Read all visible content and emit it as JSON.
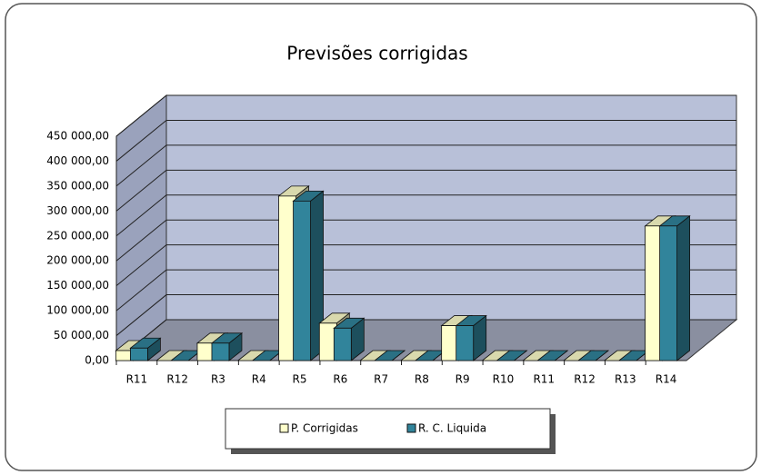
{
  "chart_data": {
    "type": "bar3d",
    "title": "Previsões corrigidas",
    "categories": [
      "R11",
      "R12",
      "R3",
      "R4",
      "R5",
      "R6",
      "R7",
      "R8",
      "R9",
      "R10",
      "R11",
      "R12",
      "R13",
      "R14"
    ],
    "series": [
      {
        "name": "P. Corrigidas",
        "color": "#ffffcc",
        "values": [
          20000,
          0,
          35000,
          0,
          330000,
          75000,
          0,
          0,
          70000,
          0,
          0,
          0,
          0,
          270000
        ]
      },
      {
        "name": "R. C. Liquida",
        "color": "#31849b",
        "values": [
          25000,
          0,
          35000,
          0,
          320000,
          65000,
          0,
          0,
          70000,
          0,
          0,
          0,
          0,
          270000
        ]
      }
    ],
    "ylim": [
      0,
      450000
    ],
    "yticks": [
      {
        "value": 0,
        "label": "0,00"
      },
      {
        "value": 50000,
        "label": "50 000,00"
      },
      {
        "value": 100000,
        "label": "100 000,00"
      },
      {
        "value": 150000,
        "label": "150 000,00"
      },
      {
        "value": 200000,
        "label": "200 000,00"
      },
      {
        "value": 250000,
        "label": "250 000,00"
      },
      {
        "value": 300000,
        "label": "300 000,00"
      },
      {
        "value": 350000,
        "label": "350 000,00"
      },
      {
        "value": 400000,
        "label": "400 000,00"
      },
      {
        "value": 450000,
        "label": "450 000,00"
      }
    ],
    "grid": true
  }
}
